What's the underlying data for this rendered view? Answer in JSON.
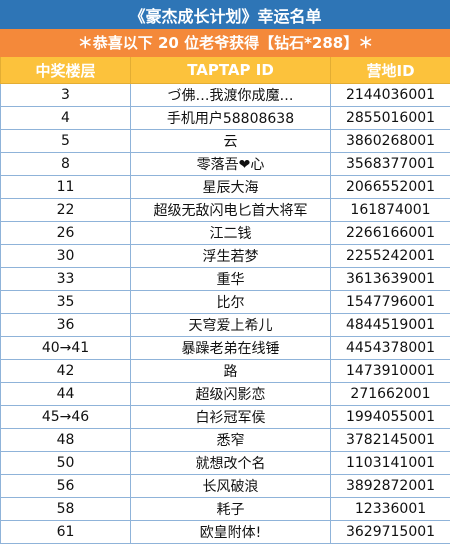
{
  "title": "《豪杰成长计划》幸运名单",
  "subtitle": "＊恭喜以下 20 位老爷获得【钻石*288】＊",
  "columns": [
    "中奖楼层",
    "TAPTAP ID",
    "营地ID"
  ],
  "colors": {
    "title_bg": "#2e75b6",
    "subtitle_bg": "#f4893a",
    "header_bg": "#fcc23c",
    "grid": "#8fb3d9"
  },
  "rows": [
    {
      "floor": "3",
      "taptap_id": "づ佛…我渡你成魔…",
      "camp_id": "2144036001"
    },
    {
      "floor": "4",
      "taptap_id": "手机用户58808638",
      "camp_id": "2855016001"
    },
    {
      "floor": "5",
      "taptap_id": "云",
      "camp_id": "3860268001"
    },
    {
      "floor": "8",
      "taptap_id": "零落吾❤心",
      "camp_id": "3568377001"
    },
    {
      "floor": "11",
      "taptap_id": "星辰大海",
      "camp_id": "2066552001"
    },
    {
      "floor": "22",
      "taptap_id": "超级无敌闪电匕首大将军",
      "camp_id": "161874001"
    },
    {
      "floor": "26",
      "taptap_id": "江二钱",
      "camp_id": "2266166001"
    },
    {
      "floor": "30",
      "taptap_id": "浮生若梦",
      "camp_id": "2255242001"
    },
    {
      "floor": "33",
      "taptap_id": "重华",
      "camp_id": "3613639001"
    },
    {
      "floor": "35",
      "taptap_id": "比尔",
      "camp_id": "1547796001"
    },
    {
      "floor": "36",
      "taptap_id": "天穹爱上希儿",
      "camp_id": "4844519001"
    },
    {
      "floor": "40→41",
      "taptap_id": "暴躁老弟在线锤",
      "camp_id": "4454378001"
    },
    {
      "floor": "42",
      "taptap_id": "路",
      "camp_id": "1473910001"
    },
    {
      "floor": "44",
      "taptap_id": "超级闪影恋",
      "camp_id": "271662001"
    },
    {
      "floor": "45→46",
      "taptap_id": "白衫冠军侯",
      "camp_id": "1994055001"
    },
    {
      "floor": "48",
      "taptap_id": "悉窄",
      "camp_id": "3782145001"
    },
    {
      "floor": "50",
      "taptap_id": "就想改个名",
      "camp_id": "1103141001"
    },
    {
      "floor": "56",
      "taptap_id": "长风破浪",
      "camp_id": "3892872001"
    },
    {
      "floor": "58",
      "taptap_id": "耗子",
      "camp_id": "12336001"
    },
    {
      "floor": "61",
      "taptap_id": "欧皇附体!",
      "camp_id": "3629715001"
    }
  ]
}
